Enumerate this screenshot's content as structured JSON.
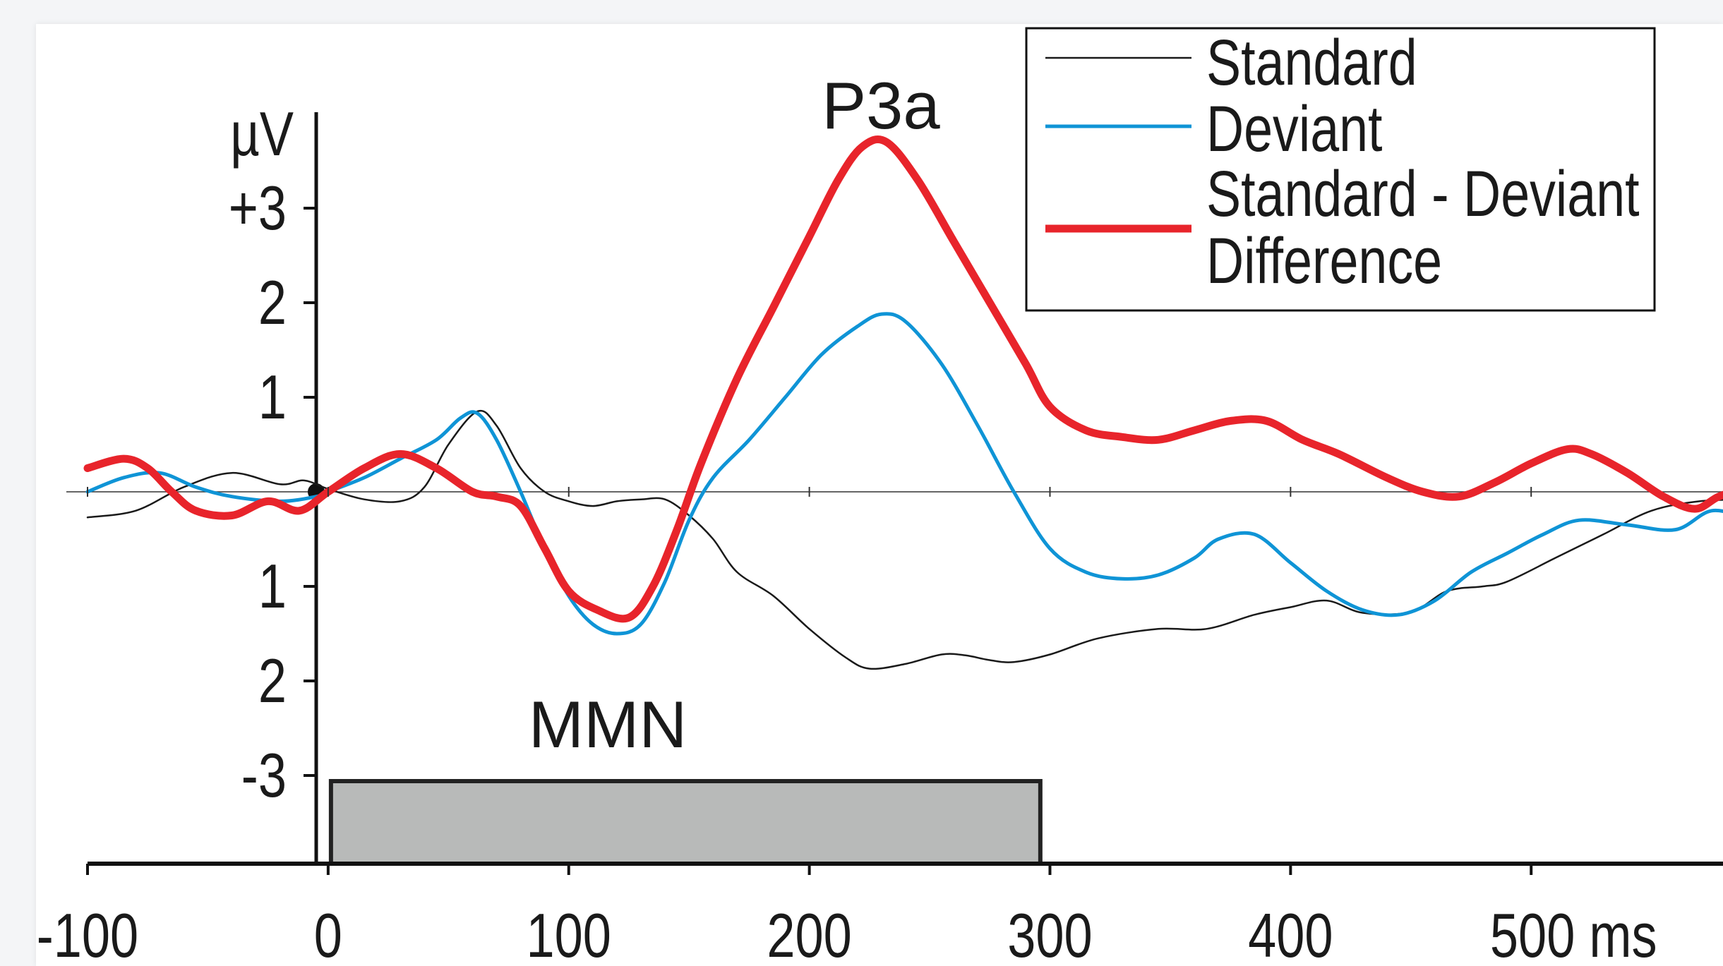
{
  "chart_data": {
    "type": "line",
    "y_unit_label": "µV",
    "x_unit_suffix": "ms",
    "xlim": [
      -100,
      590
    ],
    "ylim": [
      -4,
      4
    ],
    "y_axis_inverted_display": false,
    "x_ticks": [
      {
        "value": -100,
        "label": "-100"
      },
      {
        "value": 0,
        "label": "0"
      },
      {
        "value": 100,
        "label": "100"
      },
      {
        "value": 200,
        "label": "200"
      },
      {
        "value": 300,
        "label": "300"
      },
      {
        "value": 400,
        "label": "400"
      },
      {
        "value": 500,
        "label": "500 ms"
      }
    ],
    "y_ticks": [
      {
        "value": 3,
        "label": "+3"
      },
      {
        "value": 2,
        "label": "2"
      },
      {
        "value": 1,
        "label": "1"
      },
      {
        "value": -1,
        "label": "1"
      },
      {
        "value": -2,
        "label": "2"
      },
      {
        "value": -3,
        "label": "-3"
      }
    ],
    "stimulus_bar": {
      "start": 0,
      "end": 296,
      "color": "#b8bab9"
    },
    "annotations": [
      {
        "text": "P3a",
        "x": 233,
        "y": 4.2
      },
      {
        "text": "MMN",
        "x": 118,
        "y": -2.2
      }
    ],
    "legend_position": "top-right",
    "series": [
      {
        "name": "Standard",
        "color": "#1a1a1a",
        "width": "thin",
        "points": [
          [
            -100,
            -0.27
          ],
          [
            -80,
            -0.2
          ],
          [
            -60,
            0.05
          ],
          [
            -40,
            0.2
          ],
          [
            -20,
            0.08
          ],
          [
            -10,
            0.12
          ],
          [
            0,
            0.03
          ],
          [
            15,
            -0.08
          ],
          [
            30,
            -0.1
          ],
          [
            40,
            0.05
          ],
          [
            50,
            0.5
          ],
          [
            62,
            0.85
          ],
          [
            70,
            0.7
          ],
          [
            80,
            0.25
          ],
          [
            90,
            0.0
          ],
          [
            100,
            -0.1
          ],
          [
            110,
            -0.15
          ],
          [
            120,
            -0.1
          ],
          [
            130,
            -0.08
          ],
          [
            140,
            -0.08
          ],
          [
            150,
            -0.25
          ],
          [
            160,
            -0.5
          ],
          [
            170,
            -0.85
          ],
          [
            185,
            -1.1
          ],
          [
            200,
            -1.45
          ],
          [
            215,
            -1.75
          ],
          [
            225,
            -1.87
          ],
          [
            240,
            -1.82
          ],
          [
            255,
            -1.72
          ],
          [
            265,
            -1.73
          ],
          [
            275,
            -1.78
          ],
          [
            285,
            -1.8
          ],
          [
            300,
            -1.72
          ],
          [
            320,
            -1.55
          ],
          [
            345,
            -1.45
          ],
          [
            365,
            -1.45
          ],
          [
            385,
            -1.3
          ],
          [
            400,
            -1.22
          ],
          [
            415,
            -1.15
          ],
          [
            430,
            -1.28
          ],
          [
            450,
            -1.27
          ],
          [
            465,
            -1.05
          ],
          [
            480,
            -1.0
          ],
          [
            490,
            -0.95
          ],
          [
            510,
            -0.7
          ],
          [
            530,
            -0.45
          ],
          [
            550,
            -0.2
          ],
          [
            570,
            -0.1
          ],
          [
            590,
            -0.08
          ]
        ]
      },
      {
        "name": "Deviant",
        "color": "#0f94d6",
        "width": "medium",
        "points": [
          [
            -100,
            0.0
          ],
          [
            -85,
            0.15
          ],
          [
            -70,
            0.2
          ],
          [
            -55,
            0.05
          ],
          [
            -40,
            -0.05
          ],
          [
            -20,
            -0.1
          ],
          [
            -5,
            -0.05
          ],
          [
            0,
            0.0
          ],
          [
            15,
            0.15
          ],
          [
            30,
            0.35
          ],
          [
            45,
            0.55
          ],
          [
            55,
            0.78
          ],
          [
            62,
            0.83
          ],
          [
            70,
            0.55
          ],
          [
            80,
            0.0
          ],
          [
            90,
            -0.6
          ],
          [
            100,
            -1.1
          ],
          [
            110,
            -1.4
          ],
          [
            120,
            -1.5
          ],
          [
            130,
            -1.4
          ],
          [
            140,
            -0.95
          ],
          [
            150,
            -0.3
          ],
          [
            160,
            0.15
          ],
          [
            175,
            0.55
          ],
          [
            190,
            1.0
          ],
          [
            205,
            1.45
          ],
          [
            220,
            1.75
          ],
          [
            230,
            1.88
          ],
          [
            240,
            1.8
          ],
          [
            255,
            1.35
          ],
          [
            270,
            0.7
          ],
          [
            285,
            0.0
          ],
          [
            300,
            -0.6
          ],
          [
            315,
            -0.85
          ],
          [
            330,
            -0.92
          ],
          [
            345,
            -0.88
          ],
          [
            360,
            -0.7
          ],
          [
            370,
            -0.5
          ],
          [
            385,
            -0.45
          ],
          [
            400,
            -0.75
          ],
          [
            415,
            -1.05
          ],
          [
            430,
            -1.25
          ],
          [
            445,
            -1.3
          ],
          [
            460,
            -1.15
          ],
          [
            475,
            -0.85
          ],
          [
            490,
            -0.65
          ],
          [
            505,
            -0.45
          ],
          [
            520,
            -0.3
          ],
          [
            540,
            -0.35
          ],
          [
            560,
            -0.4
          ],
          [
            575,
            -0.2
          ],
          [
            590,
            -0.28
          ]
        ]
      },
      {
        "name": "Standard - Deviant\nDifference",
        "color": "#e8242b",
        "width": "thick",
        "points": [
          [
            -100,
            0.25
          ],
          [
            -85,
            0.35
          ],
          [
            -75,
            0.25
          ],
          [
            -65,
            0.0
          ],
          [
            -55,
            -0.2
          ],
          [
            -40,
            -0.25
          ],
          [
            -25,
            -0.1
          ],
          [
            -12,
            -0.2
          ],
          [
            0,
            0.0
          ],
          [
            15,
            0.25
          ],
          [
            30,
            0.4
          ],
          [
            45,
            0.25
          ],
          [
            60,
            0.0
          ],
          [
            70,
            -0.05
          ],
          [
            80,
            -0.15
          ],
          [
            90,
            -0.6
          ],
          [
            100,
            -1.05
          ],
          [
            112,
            -1.25
          ],
          [
            125,
            -1.33
          ],
          [
            135,
            -1.0
          ],
          [
            145,
            -0.4
          ],
          [
            155,
            0.3
          ],
          [
            170,
            1.2
          ],
          [
            185,
            1.95
          ],
          [
            200,
            2.7
          ],
          [
            212,
            3.3
          ],
          [
            222,
            3.65
          ],
          [
            232,
            3.7
          ],
          [
            245,
            3.3
          ],
          [
            260,
            2.65
          ],
          [
            275,
            2.0
          ],
          [
            290,
            1.35
          ],
          [
            300,
            0.9
          ],
          [
            315,
            0.65
          ],
          [
            330,
            0.58
          ],
          [
            345,
            0.55
          ],
          [
            360,
            0.65
          ],
          [
            375,
            0.75
          ],
          [
            390,
            0.75
          ],
          [
            405,
            0.55
          ],
          [
            420,
            0.4
          ],
          [
            440,
            0.15
          ],
          [
            455,
            0.0
          ],
          [
            470,
            -0.05
          ],
          [
            485,
            0.1
          ],
          [
            500,
            0.3
          ],
          [
            515,
            0.45
          ],
          [
            525,
            0.4
          ],
          [
            540,
            0.2
          ],
          [
            555,
            -0.05
          ],
          [
            568,
            -0.18
          ],
          [
            578,
            -0.05
          ],
          [
            590,
            0.05
          ]
        ]
      }
    ]
  }
}
